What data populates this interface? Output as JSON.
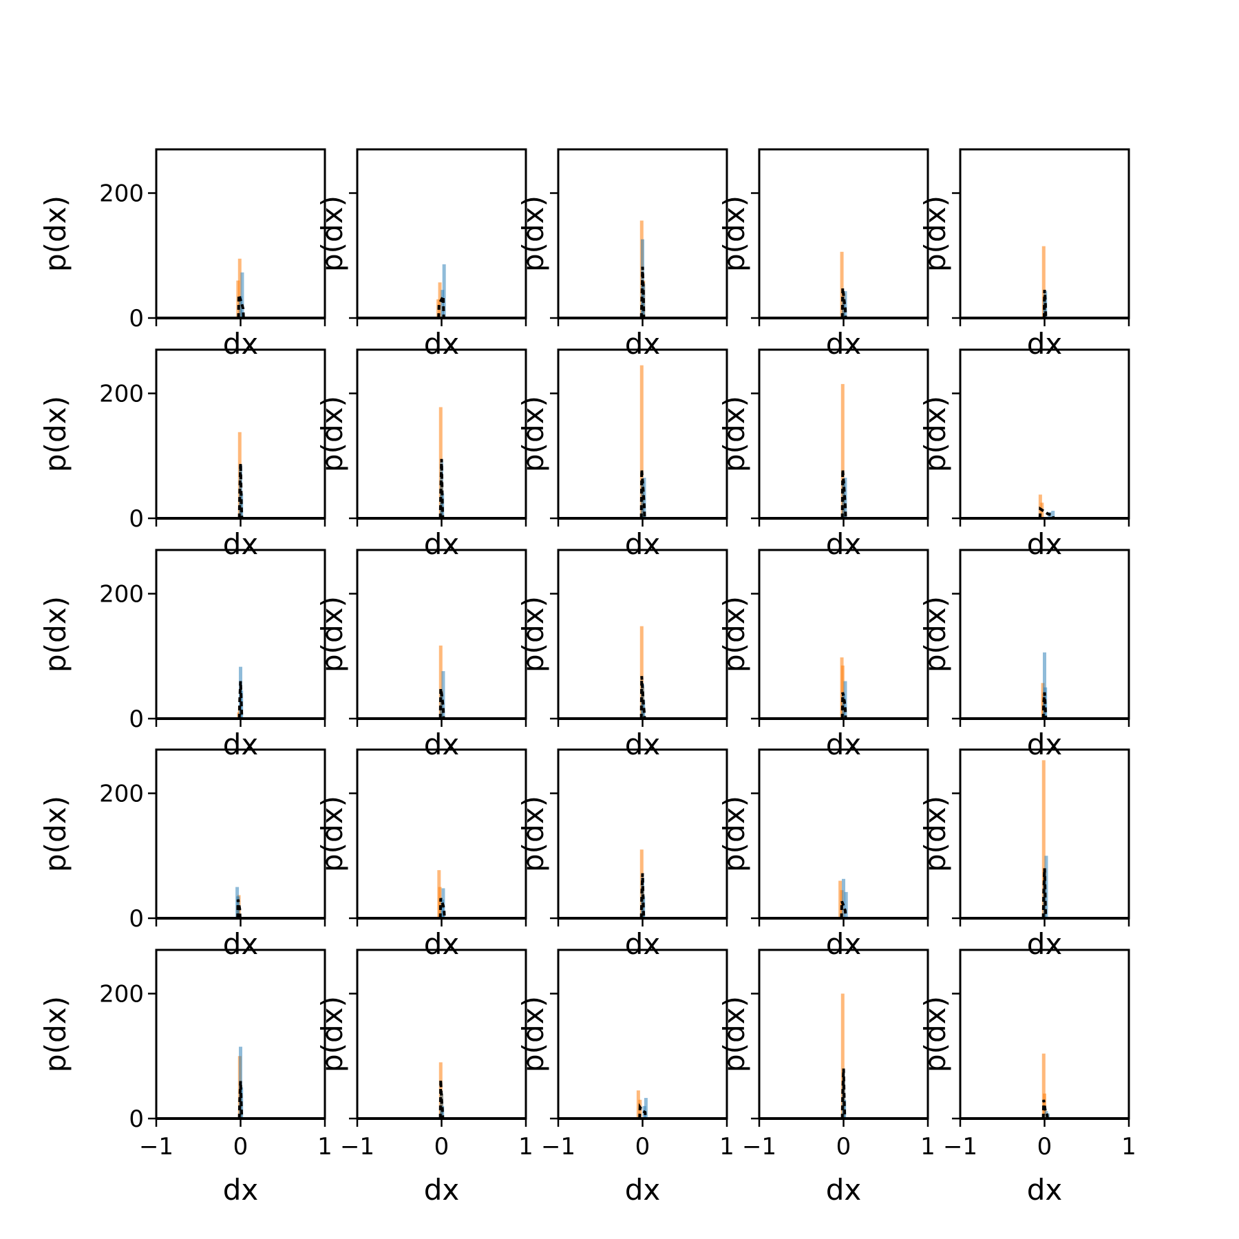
{
  "chart_data": {
    "type": "bar",
    "layout": "5x5 grid of histogram panels",
    "xlabel": "dx",
    "ylabel": "p(dx)",
    "xlim": [
      -1,
      1
    ],
    "ylim": [
      0,
      270
    ],
    "x_ticks": [
      -1,
      0,
      1
    ],
    "x_tick_labels": [
      "−1",
      "0",
      "1"
    ],
    "y_ticks": [
      0,
      200
    ],
    "y_tick_labels": [
      "0",
      "200"
    ],
    "grid": false,
    "legend": "none",
    "colors": {
      "series_a": "#1f77b4",
      "series_b": "#ff7f0e",
      "dashed": "#000000",
      "axes": "#000000"
    },
    "panels": [
      {
        "row": 0,
        "col": 0,
        "series_b": [
          {
            "x": -0.01,
            "y": 95
          },
          {
            "x": -0.03,
            "y": 60
          }
        ],
        "series_a": [
          {
            "x": 0.02,
            "y": 73
          },
          {
            "x": 0.0,
            "y": 35
          }
        ],
        "dashed": [
          {
            "x": -0.02,
            "y": 37
          },
          {
            "x": 0.01,
            "y": 25
          },
          {
            "x": 0.03,
            "y": 15
          }
        ]
      },
      {
        "row": 0,
        "col": 1,
        "series_b": [
          {
            "x": -0.02,
            "y": 57
          },
          {
            "x": -0.04,
            "y": 30
          }
        ],
        "series_a": [
          {
            "x": 0.03,
            "y": 86
          },
          {
            "x": 0.01,
            "y": 45
          }
        ],
        "dashed": [
          {
            "x": -0.03,
            "y": 22
          },
          {
            "x": 0.02,
            "y": 35
          }
        ]
      },
      {
        "row": 0,
        "col": 2,
        "series_b": [
          {
            "x": -0.01,
            "y": 156
          },
          {
            "x": 0.01,
            "y": 60
          }
        ],
        "series_a": [
          {
            "x": 0.0,
            "y": 126
          },
          {
            "x": 0.01,
            "y": 55
          }
        ],
        "dashed": [
          {
            "x": 0.0,
            "y": 82
          },
          {
            "x": 0.01,
            "y": 40
          },
          {
            "x": -0.01,
            "y": 20
          }
        ]
      },
      {
        "row": 0,
        "col": 3,
        "series_b": [
          {
            "x": -0.02,
            "y": 106
          },
          {
            "x": 0.0,
            "y": 40
          }
        ],
        "series_a": [
          {
            "x": 0.02,
            "y": 43
          },
          {
            "x": 0.0,
            "y": 30
          }
        ],
        "dashed": [
          {
            "x": -0.01,
            "y": 48
          },
          {
            "x": 0.01,
            "y": 25
          },
          {
            "x": 0.02,
            "y": 15
          }
        ]
      },
      {
        "row": 0,
        "col": 4,
        "series_b": [
          {
            "x": -0.01,
            "y": 115
          },
          {
            "x": 0.0,
            "y": 35
          }
        ],
        "series_a": [
          {
            "x": 0.01,
            "y": 43
          },
          {
            "x": 0.0,
            "y": 30
          }
        ],
        "dashed": [
          {
            "x": 0.0,
            "y": 45
          },
          {
            "x": 0.01,
            "y": 25
          }
        ]
      },
      {
        "row": 1,
        "col": 0,
        "series_b": [
          {
            "x": -0.01,
            "y": 138
          },
          {
            "x": 0.0,
            "y": 40
          }
        ],
        "series_a": [
          {
            "x": 0.0,
            "y": 85
          },
          {
            "x": 0.01,
            "y": 40
          }
        ],
        "dashed": [
          {
            "x": 0.0,
            "y": 88
          },
          {
            "x": -0.01,
            "y": 40
          },
          {
            "x": 0.01,
            "y": 20
          }
        ]
      },
      {
        "row": 1,
        "col": 1,
        "series_b": [
          {
            "x": -0.01,
            "y": 178
          },
          {
            "x": 0.0,
            "y": 60
          }
        ],
        "series_a": [
          {
            "x": 0.0,
            "y": 90
          },
          {
            "x": 0.01,
            "y": 40
          }
        ],
        "dashed": [
          {
            "x": 0.0,
            "y": 95
          },
          {
            "x": -0.01,
            "y": 40
          },
          {
            "x": 0.01,
            "y": 20
          }
        ]
      },
      {
        "row": 1,
        "col": 2,
        "series_b": [
          {
            "x": -0.01,
            "y": 245
          },
          {
            "x": 0.0,
            "y": 60
          }
        ],
        "series_a": [
          {
            "x": 0.02,
            "y": 65
          },
          {
            "x": 0.0,
            "y": 60
          }
        ],
        "dashed": [
          {
            "x": -0.01,
            "y": 78
          },
          {
            "x": 0.01,
            "y": 40
          },
          {
            "x": 0.02,
            "y": 20
          }
        ]
      },
      {
        "row": 1,
        "col": 3,
        "series_b": [
          {
            "x": -0.01,
            "y": 215
          },
          {
            "x": 0.0,
            "y": 60
          }
        ],
        "series_a": [
          {
            "x": 0.02,
            "y": 65
          },
          {
            "x": 0.0,
            "y": 60
          }
        ],
        "dashed": [
          {
            "x": -0.01,
            "y": 78
          },
          {
            "x": 0.01,
            "y": 40
          },
          {
            "x": 0.02,
            "y": 20
          }
        ]
      },
      {
        "row": 1,
        "col": 4,
        "series_b": [
          {
            "x": -0.05,
            "y": 38
          },
          {
            "x": -0.03,
            "y": 25
          }
        ],
        "series_a": [
          {
            "x": 0.1,
            "y": 12
          },
          {
            "x": 0.06,
            "y": 10
          }
        ],
        "dashed": [
          {
            "x": -0.05,
            "y": 15
          },
          {
            "x": 0.04,
            "y": 7
          },
          {
            "x": 0.1,
            "y": 5
          }
        ]
      },
      {
        "row": 2,
        "col": 0,
        "series_b": [
          {
            "x": -0.01,
            "y": 20
          },
          {
            "x": -0.02,
            "y": 10
          }
        ],
        "series_a": [
          {
            "x": 0.0,
            "y": 83
          },
          {
            "x": 0.01,
            "y": 45
          }
        ],
        "dashed": [
          {
            "x": 0.0,
            "y": 60
          },
          {
            "x": -0.01,
            "y": 30
          },
          {
            "x": 0.01,
            "y": 20
          }
        ]
      },
      {
        "row": 2,
        "col": 1,
        "series_b": [
          {
            "x": -0.01,
            "y": 117
          },
          {
            "x": 0.0,
            "y": 45
          }
        ],
        "series_a": [
          {
            "x": 0.02,
            "y": 76
          },
          {
            "x": 0.0,
            "y": 40
          }
        ],
        "dashed": [
          {
            "x": -0.01,
            "y": 48
          },
          {
            "x": 0.01,
            "y": 30
          },
          {
            "x": 0.02,
            "y": 15
          }
        ]
      },
      {
        "row": 2,
        "col": 2,
        "series_b": [
          {
            "x": -0.01,
            "y": 148
          },
          {
            "x": 0.0,
            "y": 50
          }
        ],
        "series_a": [
          {
            "x": 0.0,
            "y": 55
          },
          {
            "x": 0.01,
            "y": 30
          }
        ],
        "dashed": [
          {
            "x": -0.01,
            "y": 68
          },
          {
            "x": 0.01,
            "y": 25
          },
          {
            "x": 0.02,
            "y": 10
          }
        ]
      },
      {
        "row": 2,
        "col": 3,
        "series_b": [
          {
            "x": -0.02,
            "y": 98
          },
          {
            "x": -0.01,
            "y": 85
          }
        ],
        "series_a": [
          {
            "x": 0.02,
            "y": 60
          },
          {
            "x": 0.0,
            "y": 40
          }
        ],
        "dashed": [
          {
            "x": -0.01,
            "y": 42
          },
          {
            "x": 0.01,
            "y": 28
          },
          {
            "x": 0.02,
            "y": 15
          }
        ]
      },
      {
        "row": 2,
        "col": 4,
        "series_b": [
          {
            "x": -0.02,
            "y": 57
          },
          {
            "x": -0.01,
            "y": 40
          }
        ],
        "series_a": [
          {
            "x": 0.0,
            "y": 106
          },
          {
            "x": 0.01,
            "y": 50
          }
        ],
        "dashed": [
          {
            "x": 0.0,
            "y": 42
          },
          {
            "x": -0.01,
            "y": 25
          },
          {
            "x": 0.01,
            "y": 15
          }
        ]
      },
      {
        "row": 3,
        "col": 0,
        "series_b": [
          {
            "x": -0.02,
            "y": 37
          },
          {
            "x": -0.03,
            "y": 20
          }
        ],
        "series_a": [
          {
            "x": -0.04,
            "y": 50
          },
          {
            "x": -0.03,
            "y": 35
          }
        ],
        "dashed": [
          {
            "x": -0.03,
            "y": 30
          },
          {
            "x": -0.01,
            "y": 15
          }
        ]
      },
      {
        "row": 3,
        "col": 1,
        "series_b": [
          {
            "x": -0.03,
            "y": 77
          },
          {
            "x": -0.02,
            "y": 50
          }
        ],
        "series_a": [
          {
            "x": 0.02,
            "y": 48
          },
          {
            "x": 0.01,
            "y": 30
          }
        ],
        "dashed": [
          {
            "x": -0.01,
            "y": 32
          },
          {
            "x": 0.02,
            "y": 20
          },
          {
            "x": 0.03,
            "y": 12
          }
        ]
      },
      {
        "row": 3,
        "col": 2,
        "series_b": [
          {
            "x": -0.01,
            "y": 110
          },
          {
            "x": 0.0,
            "y": 50
          }
        ],
        "series_a": [
          {
            "x": 0.0,
            "y": 65
          },
          {
            "x": 0.01,
            "y": 35
          }
        ],
        "dashed": [
          {
            "x": 0.0,
            "y": 72
          },
          {
            "x": -0.01,
            "y": 35
          },
          {
            "x": 0.01,
            "y": 15
          }
        ]
      },
      {
        "row": 3,
        "col": 3,
        "series_b": [
          {
            "x": -0.04,
            "y": 60
          },
          {
            "x": -0.02,
            "y": 45
          }
        ],
        "series_a": [
          {
            "x": 0.0,
            "y": 63
          },
          {
            "x": 0.03,
            "y": 42
          }
        ],
        "dashed": [
          {
            "x": -0.02,
            "y": 27
          },
          {
            "x": 0.0,
            "y": 20
          },
          {
            "x": 0.02,
            "y": 12
          }
        ]
      },
      {
        "row": 3,
        "col": 4,
        "series_b": [
          {
            "x": -0.01,
            "y": 253
          },
          {
            "x": 0.0,
            "y": 80
          }
        ],
        "series_a": [
          {
            "x": 0.02,
            "y": 100
          },
          {
            "x": 0.0,
            "y": 60
          }
        ],
        "dashed": [
          {
            "x": 0.0,
            "y": 80
          },
          {
            "x": -0.01,
            "y": 40
          },
          {
            "x": 0.01,
            "y": 20
          }
        ]
      },
      {
        "row": 4,
        "col": 0,
        "series_b": [
          {
            "x": -0.01,
            "y": 100
          },
          {
            "x": 0.0,
            "y": 40
          }
        ],
        "series_a": [
          {
            "x": 0.0,
            "y": 115
          },
          {
            "x": 0.01,
            "y": 50
          }
        ],
        "dashed": [
          {
            "x": 0.0,
            "y": 60
          },
          {
            "x": -0.01,
            "y": 30
          },
          {
            "x": 0.01,
            "y": 15
          }
        ]
      },
      {
        "row": 4,
        "col": 1,
        "series_b": [
          {
            "x": -0.01,
            "y": 90
          },
          {
            "x": 0.0,
            "y": 40
          }
        ],
        "series_a": [
          {
            "x": 0.0,
            "y": 40
          },
          {
            "x": 0.01,
            "y": 20
          }
        ],
        "dashed": [
          {
            "x": -0.01,
            "y": 62
          },
          {
            "x": 0.0,
            "y": 30
          },
          {
            "x": 0.01,
            "y": 15
          }
        ]
      },
      {
        "row": 4,
        "col": 2,
        "series_b": [
          {
            "x": -0.05,
            "y": 45
          },
          {
            "x": -0.03,
            "y": 30
          }
        ],
        "series_a": [
          {
            "x": 0.04,
            "y": 33
          },
          {
            "x": 0.02,
            "y": 20
          }
        ],
        "dashed": [
          {
            "x": -0.03,
            "y": 18
          },
          {
            "x": 0.0,
            "y": 12
          },
          {
            "x": 0.03,
            "y": 10
          }
        ]
      },
      {
        "row": 4,
        "col": 3,
        "series_b": [
          {
            "x": -0.01,
            "y": 200
          },
          {
            "x": 0.0,
            "y": 60
          }
        ],
        "series_a": [
          {
            "x": 0.0,
            "y": 60
          },
          {
            "x": 0.01,
            "y": 30
          }
        ],
        "dashed": [
          {
            "x": 0.0,
            "y": 80
          },
          {
            "x": -0.01,
            "y": 40
          },
          {
            "x": 0.01,
            "y": 20
          }
        ]
      },
      {
        "row": 4,
        "col": 4,
        "series_b": [
          {
            "x": -0.01,
            "y": 104
          },
          {
            "x": 0.0,
            "y": 40
          }
        ],
        "series_a": [
          {
            "x": 0.02,
            "y": 12
          },
          {
            "x": 0.04,
            "y": 8
          }
        ],
        "dashed": [
          {
            "x": -0.01,
            "y": 30
          },
          {
            "x": 0.01,
            "y": 12
          },
          {
            "x": 0.03,
            "y": 6
          }
        ]
      }
    ]
  }
}
